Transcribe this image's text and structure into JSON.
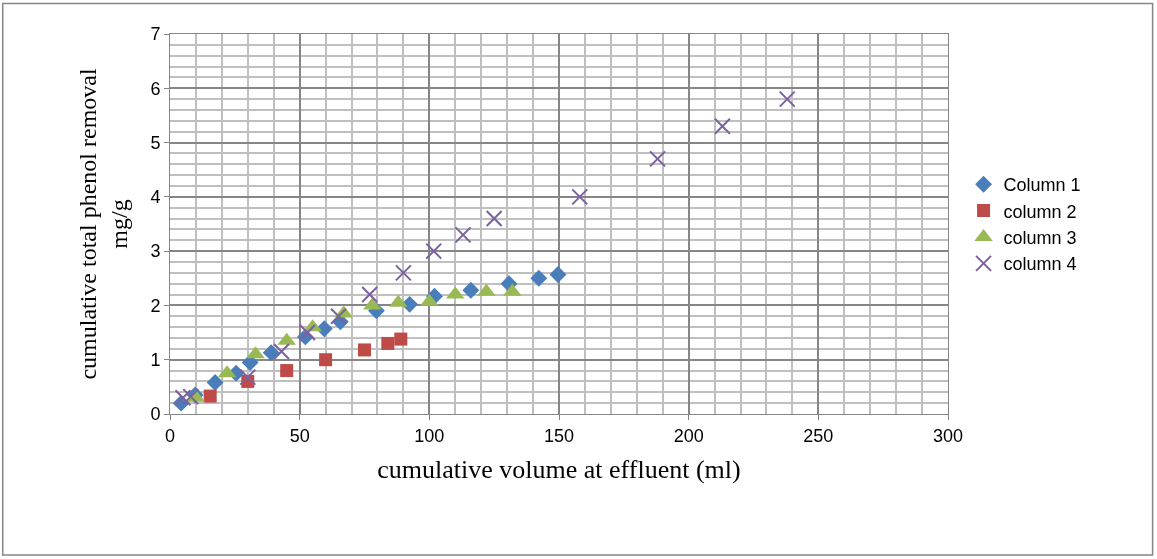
{
  "chart_data": {
    "type": "scatter",
    "xlabel": "cumulative volume at effluent (ml)",
    "ylabel": "cumulative total phenol removal\nmg/g",
    "xlim": [
      0,
      300
    ],
    "xticks": [
      0,
      50,
      100,
      150,
      200,
      250,
      300
    ],
    "ylim": [
      0,
      7
    ],
    "yticks": [
      0,
      1,
      2,
      3,
      4,
      5,
      6,
      7
    ],
    "grid": true,
    "legend": "right",
    "series": [
      {
        "name": "Column 1",
        "color": "#4a7ebb",
        "marker": "diamond",
        "x": [
          4.3,
          9.7,
          17.4,
          25.5,
          30.9,
          39,
          52.2,
          59.5,
          65.7,
          79.6,
          92.4,
          102,
          116,
          130.7,
          142.2,
          149.6
        ],
        "values": [
          0.2,
          0.35,
          0.58,
          0.75,
          0.95,
          1.13,
          1.42,
          1.57,
          1.7,
          1.9,
          2.02,
          2.17,
          2.28,
          2.4,
          2.5,
          2.57
        ]
      },
      {
        "name": "column 2",
        "color": "#be4b48",
        "marker": "square",
        "x": [
          15.5,
          30,
          45,
          60,
          75,
          84,
          89
        ],
        "values": [
          0.33,
          0.6,
          0.8,
          1.0,
          1.18,
          1.3,
          1.38
        ]
      },
      {
        "name": "column 3",
        "color": "#98b954",
        "marker": "triangle",
        "x": [
          10,
          22,
          33,
          45,
          55,
          67,
          78,
          88,
          100,
          110,
          122,
          132
        ],
        "values": [
          0.3,
          0.75,
          1.1,
          1.35,
          1.6,
          1.85,
          2.0,
          2.05,
          2.07,
          2.2,
          2.25,
          2.25
        ]
      },
      {
        "name": "column 4",
        "color": "#7d60a0",
        "marker": "cross",
        "x": [
          5,
          8,
          30,
          43,
          53,
          65,
          77,
          90,
          101.7,
          113,
          125,
          158,
          188,
          213,
          238
        ],
        "values": [
          0.3,
          0.32,
          0.68,
          1.15,
          1.5,
          1.8,
          2.2,
          2.6,
          3.0,
          3.3,
          3.6,
          4.0,
          4.7,
          5.3,
          5.8
        ]
      }
    ]
  }
}
